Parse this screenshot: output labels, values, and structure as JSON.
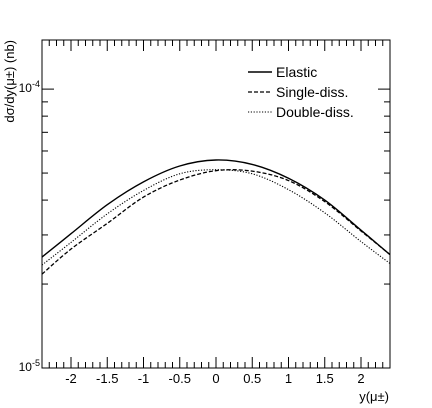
{
  "chart_data": {
    "type": "line",
    "title": "",
    "xlabel": "y(μ±)",
    "ylabel": "dσ/dy(μ±) (nb)",
    "xlim": [
      -2.4,
      2.4
    ],
    "ylim": [
      1e-05,
      0.00015
    ],
    "yscale": "log",
    "xticks": [
      -2,
      -1.5,
      -1,
      -0.5,
      0,
      0.5,
      1,
      1.5,
      2
    ],
    "xticklabels": [
      "-2",
      "-1.5",
      "-1",
      "-0.5",
      "0",
      "0.5",
      "1",
      "1.5",
      "2"
    ],
    "yticklabels": [
      {
        "value": 1e-05,
        "base": "10",
        "exp": "-5"
      },
      {
        "value": 0.0001,
        "base": "10",
        "exp": "-4"
      }
    ],
    "legend_position": "top-right",
    "grid": false,
    "x": [
      -2.4,
      -2.0,
      -1.5,
      -1.0,
      -0.5,
      0.0,
      0.5,
      1.0,
      1.5,
      2.0,
      2.4
    ],
    "series": [
      {
        "name": "Elastic",
        "style": "solid",
        "values": [
          2.5e-05,
          3.03e-05,
          3.85e-05,
          4.65e-05,
          5.3e-05,
          5.57e-05,
          5.37e-05,
          4.79e-05,
          4e-05,
          3.12e-05,
          2.55e-05
        ]
      },
      {
        "name": "Single-diss.",
        "style": "dashed",
        "values": [
          2.17e-05,
          2.67e-05,
          3.3e-05,
          4.1e-05,
          4.72e-05,
          5.1e-05,
          5.08e-05,
          4.7e-05,
          3.95e-05,
          3.1e-05,
          2.55e-05
        ]
      },
      {
        "name": "Double-diss.",
        "style": "dotted",
        "values": [
          2.34e-05,
          2.82e-05,
          3.57e-05,
          4.33e-05,
          4.97e-05,
          5.14e-05,
          4.97e-05,
          4.36e-05,
          3.6e-05,
          2.84e-05,
          2.37e-05
        ]
      }
    ]
  }
}
